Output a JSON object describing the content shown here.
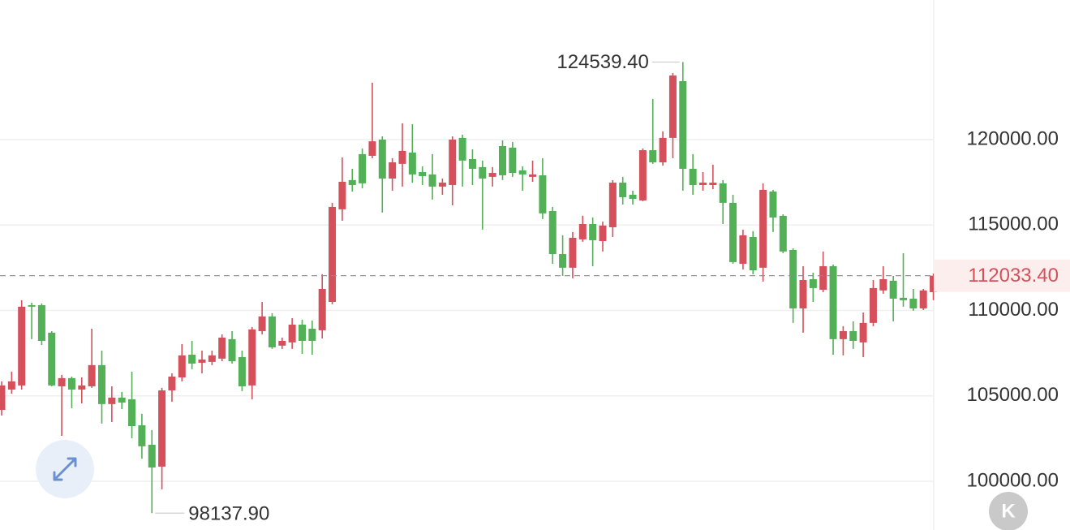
{
  "chart_data": {
    "type": "candlestick",
    "open": [
      104180,
      105370,
      105610,
      110310,
      110310,
      108700,
      105560,
      106040,
      105370,
      105560,
      106800,
      104520,
      104900,
      104800,
      103280,
      102140,
      100860,
      105320,
      106080,
      107410,
      106940,
      106990,
      107180,
      108320,
      107270,
      105610,
      108790,
      109650,
      107940,
      108130,
      109170,
      108930,
      108840,
      110500,
      115920,
      117630,
      119150,
      119050,
      120000,
      117720,
      118580,
      119240,
      118100,
      117960,
      117250,
      117340,
      120100,
      118860,
      118390,
      117820,
      119620,
      119530,
      118200,
      117820,
      117910,
      115820,
      113300,
      112500,
      114160,
      115060,
      114060,
      114870,
      117480,
      116770,
      116440,
      119380,
      118670,
      120100,
      123420,
      118290,
      117340,
      117340,
      117440,
      116300,
      112730,
      114300,
      112500,
      116960,
      115540,
      113540,
      110120,
      111830,
      111210,
      112590,
      108320,
      108790,
      108130,
      109270,
      111170,
      111740,
      110740,
      110690,
      110120,
      111070
    ],
    "high": [
      105850,
      106420,
      110600,
      110450,
      110410,
      108790,
      106230,
      106130,
      106080,
      108930,
      107650,
      105560,
      105230,
      106420,
      103950,
      103000,
      105470,
      106320,
      108030,
      108220,
      107650,
      107650,
      108600,
      108790,
      107650,
      109030,
      110500,
      109840,
      108410,
      109550,
      109460,
      109410,
      112120,
      116300,
      118960,
      118290,
      119480,
      123330,
      120190,
      118910,
      120950,
      120900,
      118430,
      119150,
      117720,
      120190,
      120290,
      119430,
      118770,
      118390,
      119950,
      119860,
      118430,
      118770,
      118910,
      116060,
      114400,
      114590,
      115540,
      115440,
      115200,
      117630,
      117820,
      117010,
      119480,
      122380,
      120480,
      123900,
      124539.4,
      119150,
      118100,
      118530,
      117630,
      116770,
      114730,
      114640,
      117440,
      117060,
      115630,
      113640,
      112590,
      112210,
      113450,
      112690,
      109080,
      109360,
      109880,
      111780,
      112590,
      112020,
      113350,
      111260,
      111260,
      112160
    ],
    "low": [
      103850,
      105130,
      105370,
      108320,
      107980,
      105560,
      102660,
      104280,
      104560,
      105470,
      103380,
      103470,
      104230,
      102520,
      101330,
      98137.9,
      99530,
      104660,
      105850,
      106560,
      106320,
      106800,
      107030,
      106890,
      105280,
      104800,
      108600,
      107750,
      107750,
      107750,
      107460,
      107410,
      108360,
      110360,
      115250,
      116960,
      117150,
      118910,
      115730,
      117010,
      117250,
      117480,
      117340,
      116490,
      116770,
      116150,
      117250,
      117340,
      114730,
      117250,
      117630,
      117820,
      117010,
      117530,
      115350,
      112730,
      112020,
      111880,
      114020,
      112590,
      113450,
      114300,
      116200,
      116200,
      116390,
      118580,
      118480,
      118910,
      117010,
      116770,
      117010,
      117100,
      115060,
      112730,
      112400,
      112120,
      111690,
      114590,
      113350,
      109270,
      108700,
      110500,
      111070,
      107410,
      107370,
      107750,
      107270,
      109080,
      110980,
      109360,
      110220,
      109980,
      110030,
      110600
    ],
    "close": [
      105610,
      105850,
      110220,
      110220,
      108220,
      105610,
      106040,
      105370,
      105610,
      106800,
      104520,
      104900,
      104610,
      103230,
      102050,
      100810,
      105320,
      106130,
      107370,
      106890,
      107130,
      107370,
      108410,
      107030,
      105560,
      108890,
      109650,
      107840,
      108220,
      109170,
      108220,
      108220,
      111260,
      116060,
      117530,
      117340,
      117440,
      119900,
      117720,
      118670,
      119340,
      117960,
      117860,
      117250,
      117480,
      120000,
      118770,
      118290,
      117720,
      118050,
      117910,
      118050,
      117960,
      117960,
      115680,
      113300,
      112500,
      114250,
      115060,
      114110,
      114970,
      117480,
      116630,
      116530,
      119380,
      118670,
      120100,
      123750,
      118290,
      117340,
      117480,
      117480,
      116300,
      112830,
      114400,
      112350,
      117060,
      115440,
      113450,
      110120,
      111780,
      111310,
      112590,
      108320,
      108790,
      108220,
      109270,
      111310,
      111830,
      110690,
      110600,
      110120,
      111170,
      112033.4
    ],
    "up_color": "#d6505b",
    "down_color": "#52b156",
    "ylim": [
      97150,
      128170
    ],
    "yticks": [
      {
        "value": 100000,
        "label": "100000.00"
      },
      {
        "value": 105000,
        "label": "105000.00"
      },
      {
        "value": 110000,
        "label": "110000.00"
      },
      {
        "value": 115000,
        "label": "115000.00"
      },
      {
        "value": 120000,
        "label": "120000.00"
      }
    ],
    "grid": true,
    "max_label": "124539.40",
    "min_label": "98137.90",
    "last_label": "112033.40"
  },
  "controls": {
    "kline_button": "K"
  }
}
